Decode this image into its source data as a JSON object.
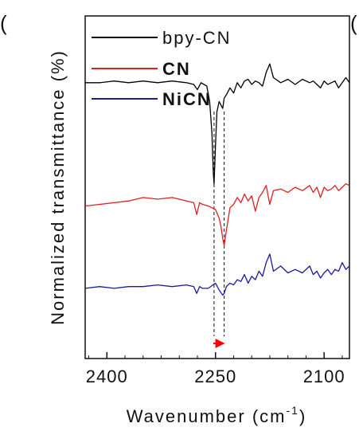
{
  "chart_data": {
    "type": "line",
    "xlabel": "Wavenumber (cm",
    "xlabel_sup": "-1",
    "xlabel_end": ")",
    "ylabel": "Normalized transmittance (%)",
    "xlim": [
      2430,
      2065
    ],
    "ylim": [
      0,
      10
    ],
    "x_ticks": [
      2400,
      2250,
      2100
    ],
    "x_tick_labels": [
      "2400",
      "2250",
      "2100"
    ],
    "legend_position": "top-center",
    "panel_marks": [
      "(",
      "("
    ],
    "marker_lines": [
      2252,
      2238
    ],
    "shift_arrow": {
      "from": 2253,
      "to": 2237,
      "color": "#ff0000"
    },
    "series": [
      {
        "name": "bpy-CN",
        "color": "#000000",
        "bold": false,
        "x": [
          2430,
          2410,
          2390,
          2370,
          2350,
          2330,
          2310,
          2290,
          2280,
          2275,
          2270,
          2262,
          2258,
          2255,
          2253,
          2252,
          2250,
          2248,
          2245,
          2240,
          2238,
          2235,
          2230,
          2225,
          2220,
          2215,
          2210,
          2205,
          2200,
          2195,
          2190,
          2185,
          2180,
          2175,
          2170,
          2160,
          2150,
          2140,
          2130,
          2120,
          2115,
          2110,
          2105,
          2100,
          2095,
          2090,
          2085,
          2080,
          2075,
          2070,
          2065
        ],
        "y": [
          8.05,
          8.05,
          8.1,
          8.05,
          8.1,
          8.05,
          8.1,
          8.05,
          8.0,
          7.85,
          8.05,
          7.95,
          7.5,
          6.6,
          5.4,
          5.1,
          6.2,
          7.2,
          7.5,
          7.3,
          7.6,
          7.7,
          7.9,
          7.75,
          8.05,
          7.9,
          8.1,
          8.15,
          8.0,
          8.1,
          8.05,
          7.95,
          8.35,
          8.6,
          8.2,
          8.05,
          8.15,
          8.0,
          8.15,
          8.05,
          8.1,
          8.0,
          7.9,
          8.1,
          8.0,
          8.05,
          8.1,
          7.9,
          8.05,
          8.2,
          8.05
        ]
      },
      {
        "name": "CN",
        "color": "#e02020",
        "bold": true,
        "x": [
          2430,
          2410,
          2390,
          2370,
          2350,
          2330,
          2310,
          2290,
          2280,
          2276,
          2272,
          2268,
          2260,
          2250,
          2245,
          2242,
          2240,
          2238,
          2236,
          2233,
          2230,
          2225,
          2220,
          2215,
          2210,
          2205,
          2200,
          2195,
          2190,
          2185,
          2180,
          2175,
          2170,
          2160,
          2150,
          2140,
          2130,
          2120,
          2115,
          2110,
          2105,
          2100,
          2095,
          2090,
          2085,
          2080,
          2075,
          2070,
          2065
        ],
        "y": [
          4.45,
          4.5,
          4.55,
          4.6,
          4.7,
          4.65,
          4.7,
          4.6,
          4.55,
          4.2,
          4.55,
          4.5,
          4.45,
          4.35,
          4.1,
          3.8,
          3.5,
          3.3,
          3.6,
          4.0,
          4.4,
          4.5,
          4.7,
          4.55,
          4.8,
          4.6,
          4.75,
          4.3,
          4.7,
          4.85,
          5.05,
          4.5,
          4.9,
          4.95,
          4.85,
          5.0,
          4.9,
          5.05,
          4.85,
          5.0,
          4.7,
          5.0,
          4.9,
          4.95,
          5.05,
          4.9,
          5.0,
          5.1,
          5.05
        ]
      },
      {
        "name": "NiCN",
        "color": "#1a1aa0",
        "bold": true,
        "x": [
          2430,
          2410,
          2390,
          2370,
          2350,
          2330,
          2310,
          2290,
          2280,
          2276,
          2272,
          2268,
          2260,
          2250,
          2245,
          2240,
          2238,
          2235,
          2230,
          2225,
          2220,
          2215,
          2210,
          2205,
          2200,
          2195,
          2190,
          2185,
          2180,
          2175,
          2170,
          2160,
          2150,
          2140,
          2130,
          2120,
          2115,
          2110,
          2105,
          2100,
          2095,
          2090,
          2085,
          2080,
          2075,
          2070,
          2065
        ],
        "y": [
          2.05,
          2.1,
          2.05,
          2.1,
          2.1,
          2.15,
          2.1,
          2.15,
          2.1,
          1.9,
          2.1,
          2.05,
          2.05,
          2.2,
          2.0,
          1.85,
          1.9,
          2.1,
          2.2,
          2.15,
          2.3,
          2.25,
          2.45,
          2.2,
          2.4,
          2.3,
          2.55,
          2.4,
          2.8,
          3.05,
          2.55,
          2.7,
          2.5,
          2.6,
          2.5,
          2.7,
          2.45,
          2.55,
          2.35,
          2.5,
          2.6,
          2.45,
          2.6,
          2.55,
          2.8,
          2.6,
          2.7
        ]
      }
    ]
  }
}
